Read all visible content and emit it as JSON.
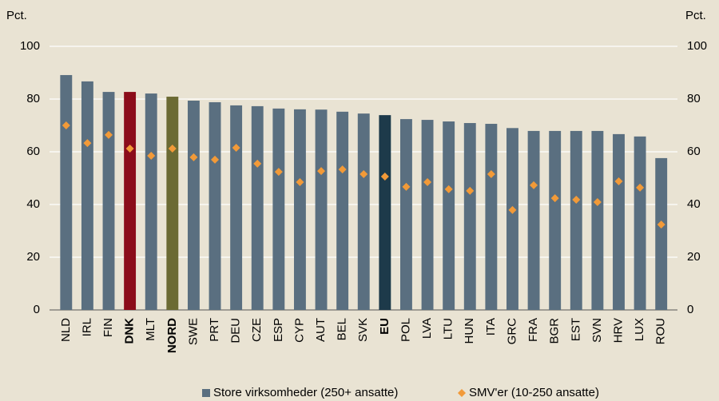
{
  "chart_data": {
    "type": "bar",
    "y_label": "Pct.",
    "y2_label": "Pct.",
    "categories": [
      "NLD",
      "IRL",
      "FIN",
      "DNK",
      "MLT",
      "NORD",
      "SWE",
      "PRT",
      "DEU",
      "CZE",
      "ESP",
      "CYP",
      "AUT",
      "BEL",
      "SVK",
      "EU",
      "POL",
      "LVA",
      "LTU",
      "HUN",
      "ITA",
      "GRC",
      "FRA",
      "BGR",
      "EST",
      "SVN",
      "HRV",
      "LUX",
      "ROU"
    ],
    "bold_categories": [
      false,
      false,
      false,
      true,
      false,
      true,
      false,
      false,
      false,
      false,
      false,
      false,
      false,
      false,
      false,
      true,
      false,
      false,
      false,
      false,
      false,
      false,
      false,
      false,
      false,
      false,
      false,
      false,
      false
    ],
    "series": [
      {
        "name": "Store virksomheder (250+ ansatte)",
        "type": "bar",
        "color": "#5a6f80",
        "colors": [
          "#5a6f80",
          "#5a6f80",
          "#5a6f80",
          "#8b0c1a",
          "#5a6f80",
          "#6b6a33",
          "#5a6f80",
          "#5a6f80",
          "#5a6f80",
          "#5a6f80",
          "#5a6f80",
          "#5a6f80",
          "#5a6f80",
          "#5a6f80",
          "#5a6f80",
          "#1d3a4a",
          "#5a6f80",
          "#5a6f80",
          "#5a6f80",
          "#5a6f80",
          "#5a6f80",
          "#5a6f80",
          "#5a6f80",
          "#5a6f80",
          "#5a6f80",
          "#5a6f80",
          "#5a6f80",
          "#5a6f80",
          "#5a6f80"
        ],
        "values": [
          89.1,
          86.7,
          82.7,
          82.7,
          82.1,
          80.9,
          79.4,
          78.8,
          77.6,
          77.3,
          76.4,
          76.1,
          76,
          75.2,
          74.5,
          73.9,
          72.4,
          72.1,
          71.5,
          70.9,
          70.6,
          69,
          67.9,
          67.9,
          67.9,
          67.9,
          66.7,
          65.8,
          57.6
        ]
      },
      {
        "name": "SMV'er (10-250 ansatte)",
        "type": "scatter",
        "color": "#f29a38",
        "values": [
          70,
          63.3,
          66.4,
          61.2,
          58.5,
          61.2,
          57.9,
          57,
          61.5,
          55.5,
          52.4,
          48.5,
          52.7,
          53.3,
          51.5,
          50.6,
          46.7,
          48.5,
          45.8,
          45.2,
          51.5,
          37.9,
          47.3,
          42.4,
          41.8,
          40.9,
          48.8,
          46.4,
          32.4
        ]
      }
    ],
    "ylim": [
      0,
      100
    ],
    "yticks": [
      0,
      20,
      40,
      60,
      80,
      100
    ],
    "y2lim": [
      0,
      100
    ],
    "y2ticks": [
      0,
      20,
      40,
      60,
      80,
      100
    ],
    "grid": true,
    "legend": "bottom"
  }
}
